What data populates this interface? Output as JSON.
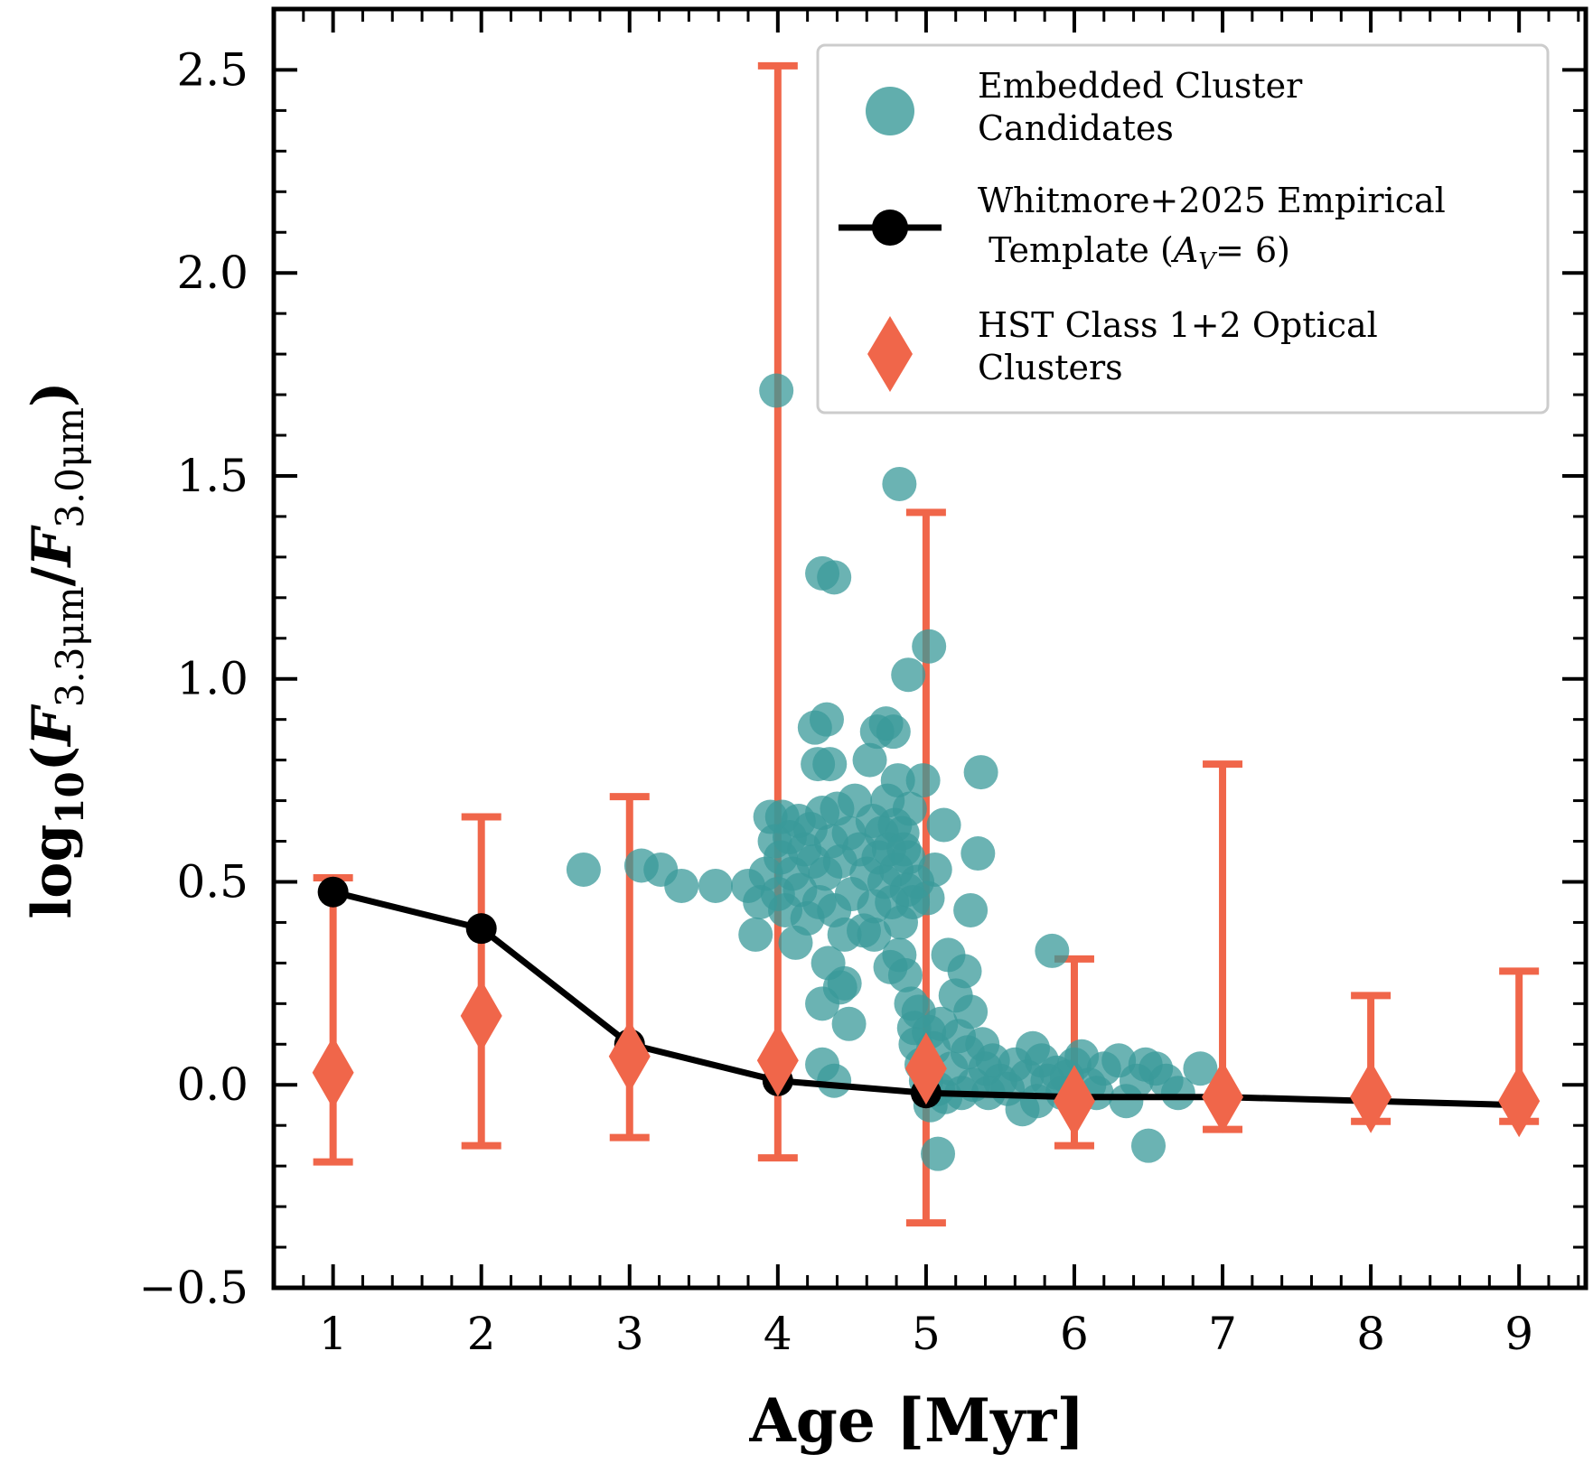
{
  "chart_data": {
    "type": "scatter",
    "xlabel": "Age [Myr]",
    "ylabel": {
      "prefix": "log",
      "sub": "10",
      "num_base": "F",
      "num_sub": "3.3μm",
      "den_base": "F",
      "den_sub": "3.0μm"
    },
    "xlim": [
      0.6,
      9.45
    ],
    "ylim": [
      -0.5,
      2.65
    ],
    "xticks": [
      1,
      2,
      3,
      4,
      5,
      6,
      7,
      8,
      9
    ],
    "yticks": [
      -0.5,
      0.0,
      0.5,
      1.0,
      1.5,
      2.0,
      2.5
    ],
    "ytick_labels": [
      "−0.5",
      "0.0",
      "0.5",
      "1.0",
      "1.5",
      "2.0",
      "2.5"
    ],
    "xtick_labels": [
      "1",
      "2",
      "3",
      "4",
      "5",
      "6",
      "7",
      "8",
      "9"
    ],
    "grid": false,
    "legend_position": "top-right",
    "colors": {
      "embedded": "#3a9a99",
      "template": "#000000",
      "hst": "#f0664a"
    },
    "series": [
      {
        "name": "Embedded Cluster Candidates",
        "legend_lines": [
          "Embedded Cluster",
          "Candidates"
        ],
        "kind": "scatter",
        "points": [
          [
            2.69,
            0.53
          ],
          [
            3.08,
            0.54
          ],
          [
            3.21,
            0.53
          ],
          [
            3.35,
            0.49
          ],
          [
            3.58,
            0.49
          ],
          [
            3.8,
            0.49
          ],
          [
            3.85,
            0.37
          ],
          [
            3.88,
            0.45
          ],
          [
            3.92,
            0.52
          ],
          [
            3.95,
            0.66
          ],
          [
            3.98,
            0.6
          ],
          [
            4.0,
            0.47
          ],
          [
            4.02,
            0.56
          ],
          [
            4.03,
            0.66
          ],
          [
            4.05,
            0.43
          ],
          [
            4.08,
            0.61
          ],
          [
            4.1,
            0.52
          ],
          [
            4.12,
            0.35
          ],
          [
            4.14,
            0.65
          ],
          [
            4.15,
            0.48
          ],
          [
            4.18,
            0.58
          ],
          [
            4.2,
            0.41
          ],
          [
            4.22,
            0.63
          ],
          [
            4.24,
            0.55
          ],
          [
            4.25,
            0.88
          ],
          [
            4.27,
            0.79
          ],
          [
            4.28,
            0.45
          ],
          [
            4.3,
            0.67
          ],
          [
            4.32,
            0.52
          ],
          [
            4.33,
            0.9
          ],
          [
            4.34,
            0.3
          ],
          [
            4.35,
            0.79
          ],
          [
            4.36,
            0.6
          ],
          [
            4.38,
            0.43
          ],
          [
            4.4,
            0.68
          ],
          [
            4.42,
            0.55
          ],
          [
            4.45,
            0.25
          ],
          [
            4.45,
            0.37
          ],
          [
            4.48,
            0.62
          ],
          [
            4.5,
            0.47
          ],
          [
            4.52,
            0.7
          ],
          [
            4.55,
            0.58
          ],
          [
            4.58,
            0.38
          ],
          [
            4.6,
            0.52
          ],
          [
            4.62,
            0.8
          ],
          [
            4.64,
            0.65
          ],
          [
            4.65,
            0.44
          ],
          [
            4.67,
            0.87
          ],
          [
            4.68,
            0.56
          ],
          [
            4.7,
            0.62
          ],
          [
            4.72,
            0.5
          ],
          [
            4.73,
            0.89
          ],
          [
            4.74,
            0.7
          ],
          [
            4.75,
            0.58
          ],
          [
            4.76,
            0.29
          ],
          [
            4.77,
            0.45
          ],
          [
            4.78,
            0.87
          ],
          [
            4.79,
            0.64
          ],
          [
            4.8,
            0.53
          ],
          [
            4.81,
            0.75
          ],
          [
            4.82,
            0.32
          ],
          [
            4.83,
            0.4
          ],
          [
            4.84,
            0.62
          ],
          [
            4.85,
            0.58
          ],
          [
            4.86,
            0.27
          ],
          [
            4.87,
            0.48
          ],
          [
            4.88,
            0.56
          ],
          [
            4.89,
            0.68
          ],
          [
            4.9,
            0.2
          ],
          [
            4.91,
            0.45
          ],
          [
            4.92,
            0.14
          ],
          [
            4.93,
            0.1
          ],
          [
            4.94,
            0.5
          ],
          [
            4.95,
            0.18
          ],
          [
            4.97,
            0.05
          ],
          [
            4.98,
            0.75
          ],
          [
            5.0,
            0.01
          ],
          [
            5.01,
            0.46
          ],
          [
            5.02,
            0.13
          ],
          [
            5.03,
            -0.05
          ],
          [
            5.05,
            0.09
          ],
          [
            5.06,
            0.53
          ],
          [
            5.08,
            -0.01
          ],
          [
            5.1,
            0.15
          ],
          [
            5.12,
            0.64
          ],
          [
            5.13,
            -0.03
          ],
          [
            5.15,
            0.32
          ],
          [
            5.17,
            0.04
          ],
          [
            5.2,
            0.22
          ],
          [
            5.22,
            0.12
          ],
          [
            5.24,
            -0.02
          ],
          [
            5.26,
            0.28
          ],
          [
            5.28,
            0.08
          ],
          [
            5.3,
            0.18
          ],
          [
            5.32,
            0.0
          ],
          [
            5.35,
            0.57
          ],
          [
            5.37,
            0.77
          ],
          [
            5.38,
            0.1
          ],
          [
            5.4,
            0.04
          ],
          [
            5.42,
            -0.02
          ],
          [
            5.45,
            0.06
          ],
          [
            5.5,
            0.01
          ],
          [
            5.55,
            -0.01
          ],
          [
            5.6,
            0.05
          ],
          [
            5.65,
            -0.06
          ],
          [
            5.68,
            0.02
          ],
          [
            5.72,
            0.09
          ],
          [
            5.75,
            -0.04
          ],
          [
            5.78,
            0.06
          ],
          [
            5.82,
            0.01
          ],
          [
            5.85,
            0.33
          ],
          [
            5.88,
            0.03
          ],
          [
            5.92,
            -0.02
          ],
          [
            5.95,
            0.02
          ],
          [
            6.0,
            0.05
          ],
          [
            6.05,
            0.07
          ],
          [
            6.1,
            0.0
          ],
          [
            6.15,
            -0.02
          ],
          [
            6.2,
            0.04
          ],
          [
            6.3,
            0.06
          ],
          [
            6.35,
            -0.04
          ],
          [
            6.42,
            0.01
          ],
          [
            6.48,
            0.05
          ],
          [
            6.5,
            -0.15
          ],
          [
            6.55,
            0.04
          ],
          [
            6.62,
            0.01
          ],
          [
            6.7,
            -0.02
          ],
          [
            6.85,
            0.04
          ],
          [
            4.3,
            1.26
          ],
          [
            4.38,
            1.25
          ],
          [
            3.99,
            1.71
          ],
          [
            4.82,
            1.48
          ],
          [
            5.02,
            1.08
          ],
          [
            4.88,
            1.01
          ],
          [
            4.3,
            0.2
          ],
          [
            4.42,
            0.24
          ],
          [
            4.48,
            0.15
          ],
          [
            4.3,
            0.05
          ],
          [
            4.38,
            0.01
          ],
          [
            5.08,
            -0.17
          ],
          [
            5.3,
            0.43
          ],
          [
            4.65,
            0.37
          ]
        ]
      },
      {
        "name": "Whitmore+2025 Empirical Template (A_V = 6)",
        "legend_lines": [
          "Whitmore+2025 Empirical",
          " Template ("
        ],
        "legend_math": {
          "base": "A",
          "sub": "V",
          "rest": "= 6)"
        },
        "kind": "line",
        "x": [
          1,
          2,
          3,
          4,
          5,
          6,
          7,
          8,
          9
        ],
        "y": [
          0.475,
          0.385,
          0.1,
          0.01,
          -0.02,
          -0.03,
          -0.03,
          -0.04,
          -0.05
        ]
      },
      {
        "name": "HST Class 1+2 Optical Clusters",
        "legend_lines": [
          "HST Class 1+2 Optical",
          "Clusters"
        ],
        "kind": "errorbar",
        "x": [
          1,
          2,
          3,
          4,
          5,
          6,
          7,
          8,
          9
        ],
        "y": [
          0.03,
          0.17,
          0.07,
          0.06,
          0.04,
          -0.04,
          -0.03,
          -0.03,
          -0.04
        ],
        "y_low": [
          -0.19,
          -0.15,
          -0.13,
          -0.18,
          -0.34,
          -0.15,
          -0.11,
          -0.09,
          -0.09
        ],
        "y_high": [
          0.51,
          0.66,
          0.71,
          2.51,
          1.41,
          0.31,
          0.79,
          0.22,
          0.28
        ]
      }
    ]
  }
}
